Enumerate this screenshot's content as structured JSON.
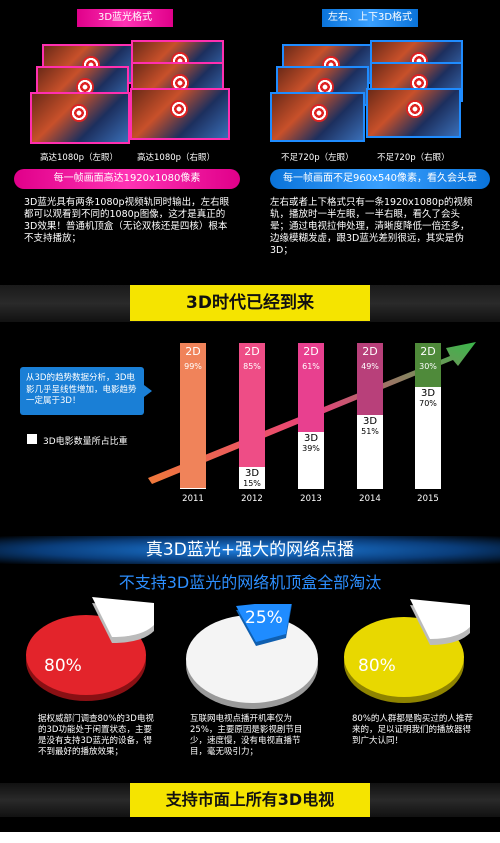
{
  "section1": {
    "left_label": "3D蓝光格式",
    "right_label": "左右、上下3D格式",
    "left_captions": [
      "高达1080p（左眼）",
      "高达1080p（右眼）"
    ],
    "right_captions": [
      "不足720p（左眼）",
      "不足720p（右眼）"
    ],
    "left_highlight": "每一帧画面高达1920x1080像素",
    "right_highlight": "每一帧画面不足960x540像素，看久会头晕",
    "left_desc": "3D蓝光具有两条1080p视频轨同时输出，左右眼都可以观看到不同的1080p图像，这才是真正的3D效果！普通机顶盒（无论双核还是四核）根本不支持播放；",
    "right_desc": "左右或者上下格式只有一条1920x1080p的视频轨，播放时一半左眼，一半右眼，看久了会头晕；通过电视拉伸处理，清晰度降低一倍还多，边缘模糊发虚，跟3D蓝光差别很远，其实是伪3D；"
  },
  "section2": {
    "banner": "3D时代已经到来",
    "callout": "从3D的趋势数据分析，3D电影几乎呈线性增加，电影趋势一定属于3D！",
    "legend": "3D电影数量所占比重"
  },
  "chart_data": {
    "type": "bar",
    "categories": [
      "2011",
      "2012",
      "2013",
      "2014",
      "2015"
    ],
    "series": [
      {
        "name": "2D",
        "values": [
          99,
          85,
          61,
          49,
          30
        ]
      },
      {
        "name": "3D",
        "values": [
          1,
          15,
          39,
          51,
          70
        ]
      }
    ],
    "labels_2d": [
      "2D",
      "2D",
      "2D",
      "2D",
      "2D"
    ],
    "labels_3d": [
      "",
      "3D",
      "3D",
      "3D",
      "3D"
    ],
    "pct_2d": [
      "99%",
      "85%",
      "61%",
      "49%",
      "30%"
    ],
    "pct_3d": [
      "",
      "15%",
      "39%",
      "51%",
      "70%"
    ],
    "colors_2d": [
      "#f0835a",
      "#ee4d86",
      "#e8408f",
      "#b8407a",
      "#4f8a3a"
    ],
    "ylim": [
      0,
      100
    ]
  },
  "section3": {
    "title": "真3D蓝光+强大的网络点播",
    "subtitle": "不支持3D蓝光的网络机顶盒全部淘汰",
    "pies": [
      {
        "pct": "80%",
        "color": "#e3242b",
        "text": "据权威部门调查80%的3D电视的3D功能处于闲置状态，主要是没有支持3D蓝光的设备，得不到最好的播放效果；"
      },
      {
        "pct": "25%",
        "color": "#ffffff",
        "text": "互联网电视点播开机率仅为25%，主要原因是影视剧节目少，速度慢，没有电视直播节目，毫无吸引力；"
      },
      {
        "pct": "80%",
        "color": "#e8d800",
        "text": "80%的人群都是购买过的人推荐来的，足以证明我们的播放器得到广大认同！"
      }
    ],
    "highlight_pct": "25%"
  },
  "section4": {
    "banner": "支持市面上所有3D电视"
  }
}
